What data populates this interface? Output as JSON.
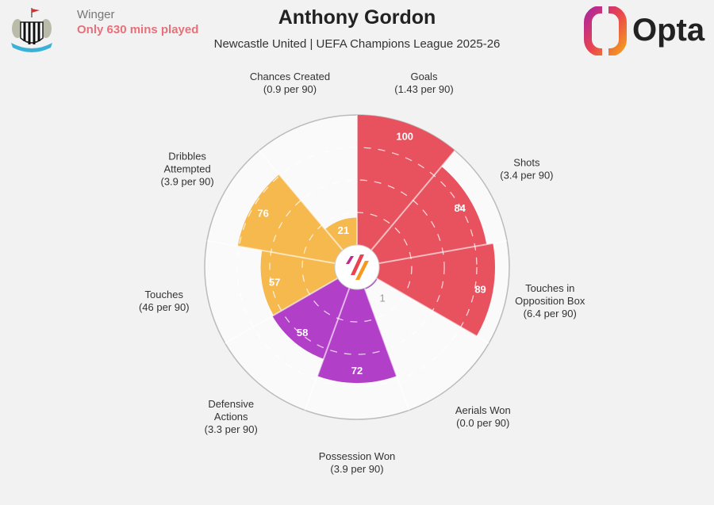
{
  "header": {
    "role": "Winger",
    "note": "Only 630 mins played",
    "title": "Anthony Gordon",
    "subtitle": "Newcastle United | UEFA Champions League 2025-26",
    "brand": "Opta"
  },
  "chart_data": {
    "type": "pizza",
    "range": [
      0,
      100
    ],
    "grid": true,
    "categories": [
      {
        "name": "Goals",
        "per90": "(1.43 per 90)",
        "percentile": 100,
        "group": "attacking"
      },
      {
        "name": "Shots",
        "per90": "(3.4 per 90)",
        "percentile": 84,
        "group": "attacking"
      },
      {
        "name": "Touches in Opposition Box",
        "per90": "(6.4 per 90)",
        "percentile": 89,
        "group": "attacking"
      },
      {
        "name": "Aerials Won",
        "per90": "(0.0 per 90)",
        "percentile": 1,
        "group": "defending"
      },
      {
        "name": "Possession Won",
        "per90": "(3.9 per 90)",
        "percentile": 72,
        "group": "defending"
      },
      {
        "name": "Defensive Actions",
        "per90": "(3.3 per 90)",
        "percentile": 58,
        "group": "defending"
      },
      {
        "name": "Touches",
        "per90": "(46 per 90)",
        "percentile": 57,
        "group": "possession"
      },
      {
        "name": "Dribbles Attempted",
        "per90": "(3.9 per 90)",
        "percentile": 76,
        "group": "possession"
      },
      {
        "name": "Chances Created",
        "per90": "(0.9 per 90)",
        "percentile": 21,
        "group": "possession"
      }
    ],
    "group_colors": {
      "attacking": "#e8525e",
      "defending": "#b23fc7",
      "possession": "#f5b94e"
    }
  }
}
